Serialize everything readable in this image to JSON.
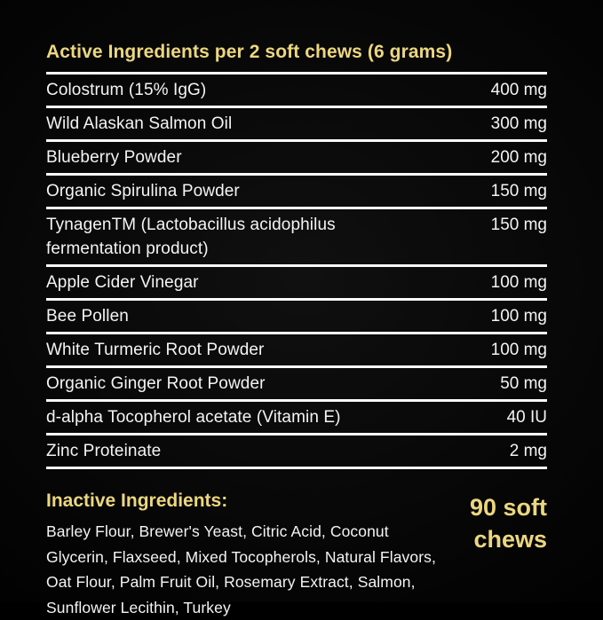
{
  "colors": {
    "background": "#000000",
    "accent": "#ecd77f",
    "text": "#f4f4f4",
    "rule": "#fafafa"
  },
  "header": {
    "title": "Active Ingredients per 2 soft chews (6 grams)"
  },
  "table": {
    "rows": [
      {
        "name": "Colostrum (15% IgG)",
        "amount": "400 mg"
      },
      {
        "name": "Wild Alaskan Salmon Oil",
        "amount": "300 mg"
      },
      {
        "name": "Blueberry Powder",
        "amount": "200 mg"
      },
      {
        "name": "Organic Spirulina Powder",
        "amount": "150 mg"
      },
      {
        "name": "TynagenTM (Lactobacillus acidophilus fermentation product)",
        "amount": "150 mg"
      },
      {
        "name": "Apple Cider Vinegar",
        "amount": "100 mg"
      },
      {
        "name": "Bee Pollen",
        "amount": "100 mg"
      },
      {
        "name": "White Turmeric Root Powder",
        "amount": "100 mg"
      },
      {
        "name": "Organic Ginger Root Powder",
        "amount": "50 mg"
      },
      {
        "name": "d-alpha Tocopherol acetate (Vitamin E)",
        "amount": "40 IU"
      },
      {
        "name": "Zinc Proteinate",
        "amount": "2 mg"
      }
    ]
  },
  "inactive": {
    "heading": "Inactive Ingredients:",
    "lines": [
      "Barley Flour, Brewer's Yeast, Citric Acid, Coconut",
      "Glycerin, Flaxseed, Mixed Tocopherols, Natural Flavors,",
      "Oat Flour, Palm Fruit Oil, Rosemary Extract, Salmon,",
      "Sunflower Lecithin, Turkey"
    ],
    "full_text": "Barley Flour, Brewer's Yeast, Citric Acid, Coconut Glycerin, Flaxseed, Mixed Tocopherols, Natural Flavors, Oat Flour, Palm Fruit Oil, Rosemary Extract, Salmon, Sunflower Lecithin, Turkey"
  },
  "count_badge": {
    "text": "90 soft chews"
  }
}
